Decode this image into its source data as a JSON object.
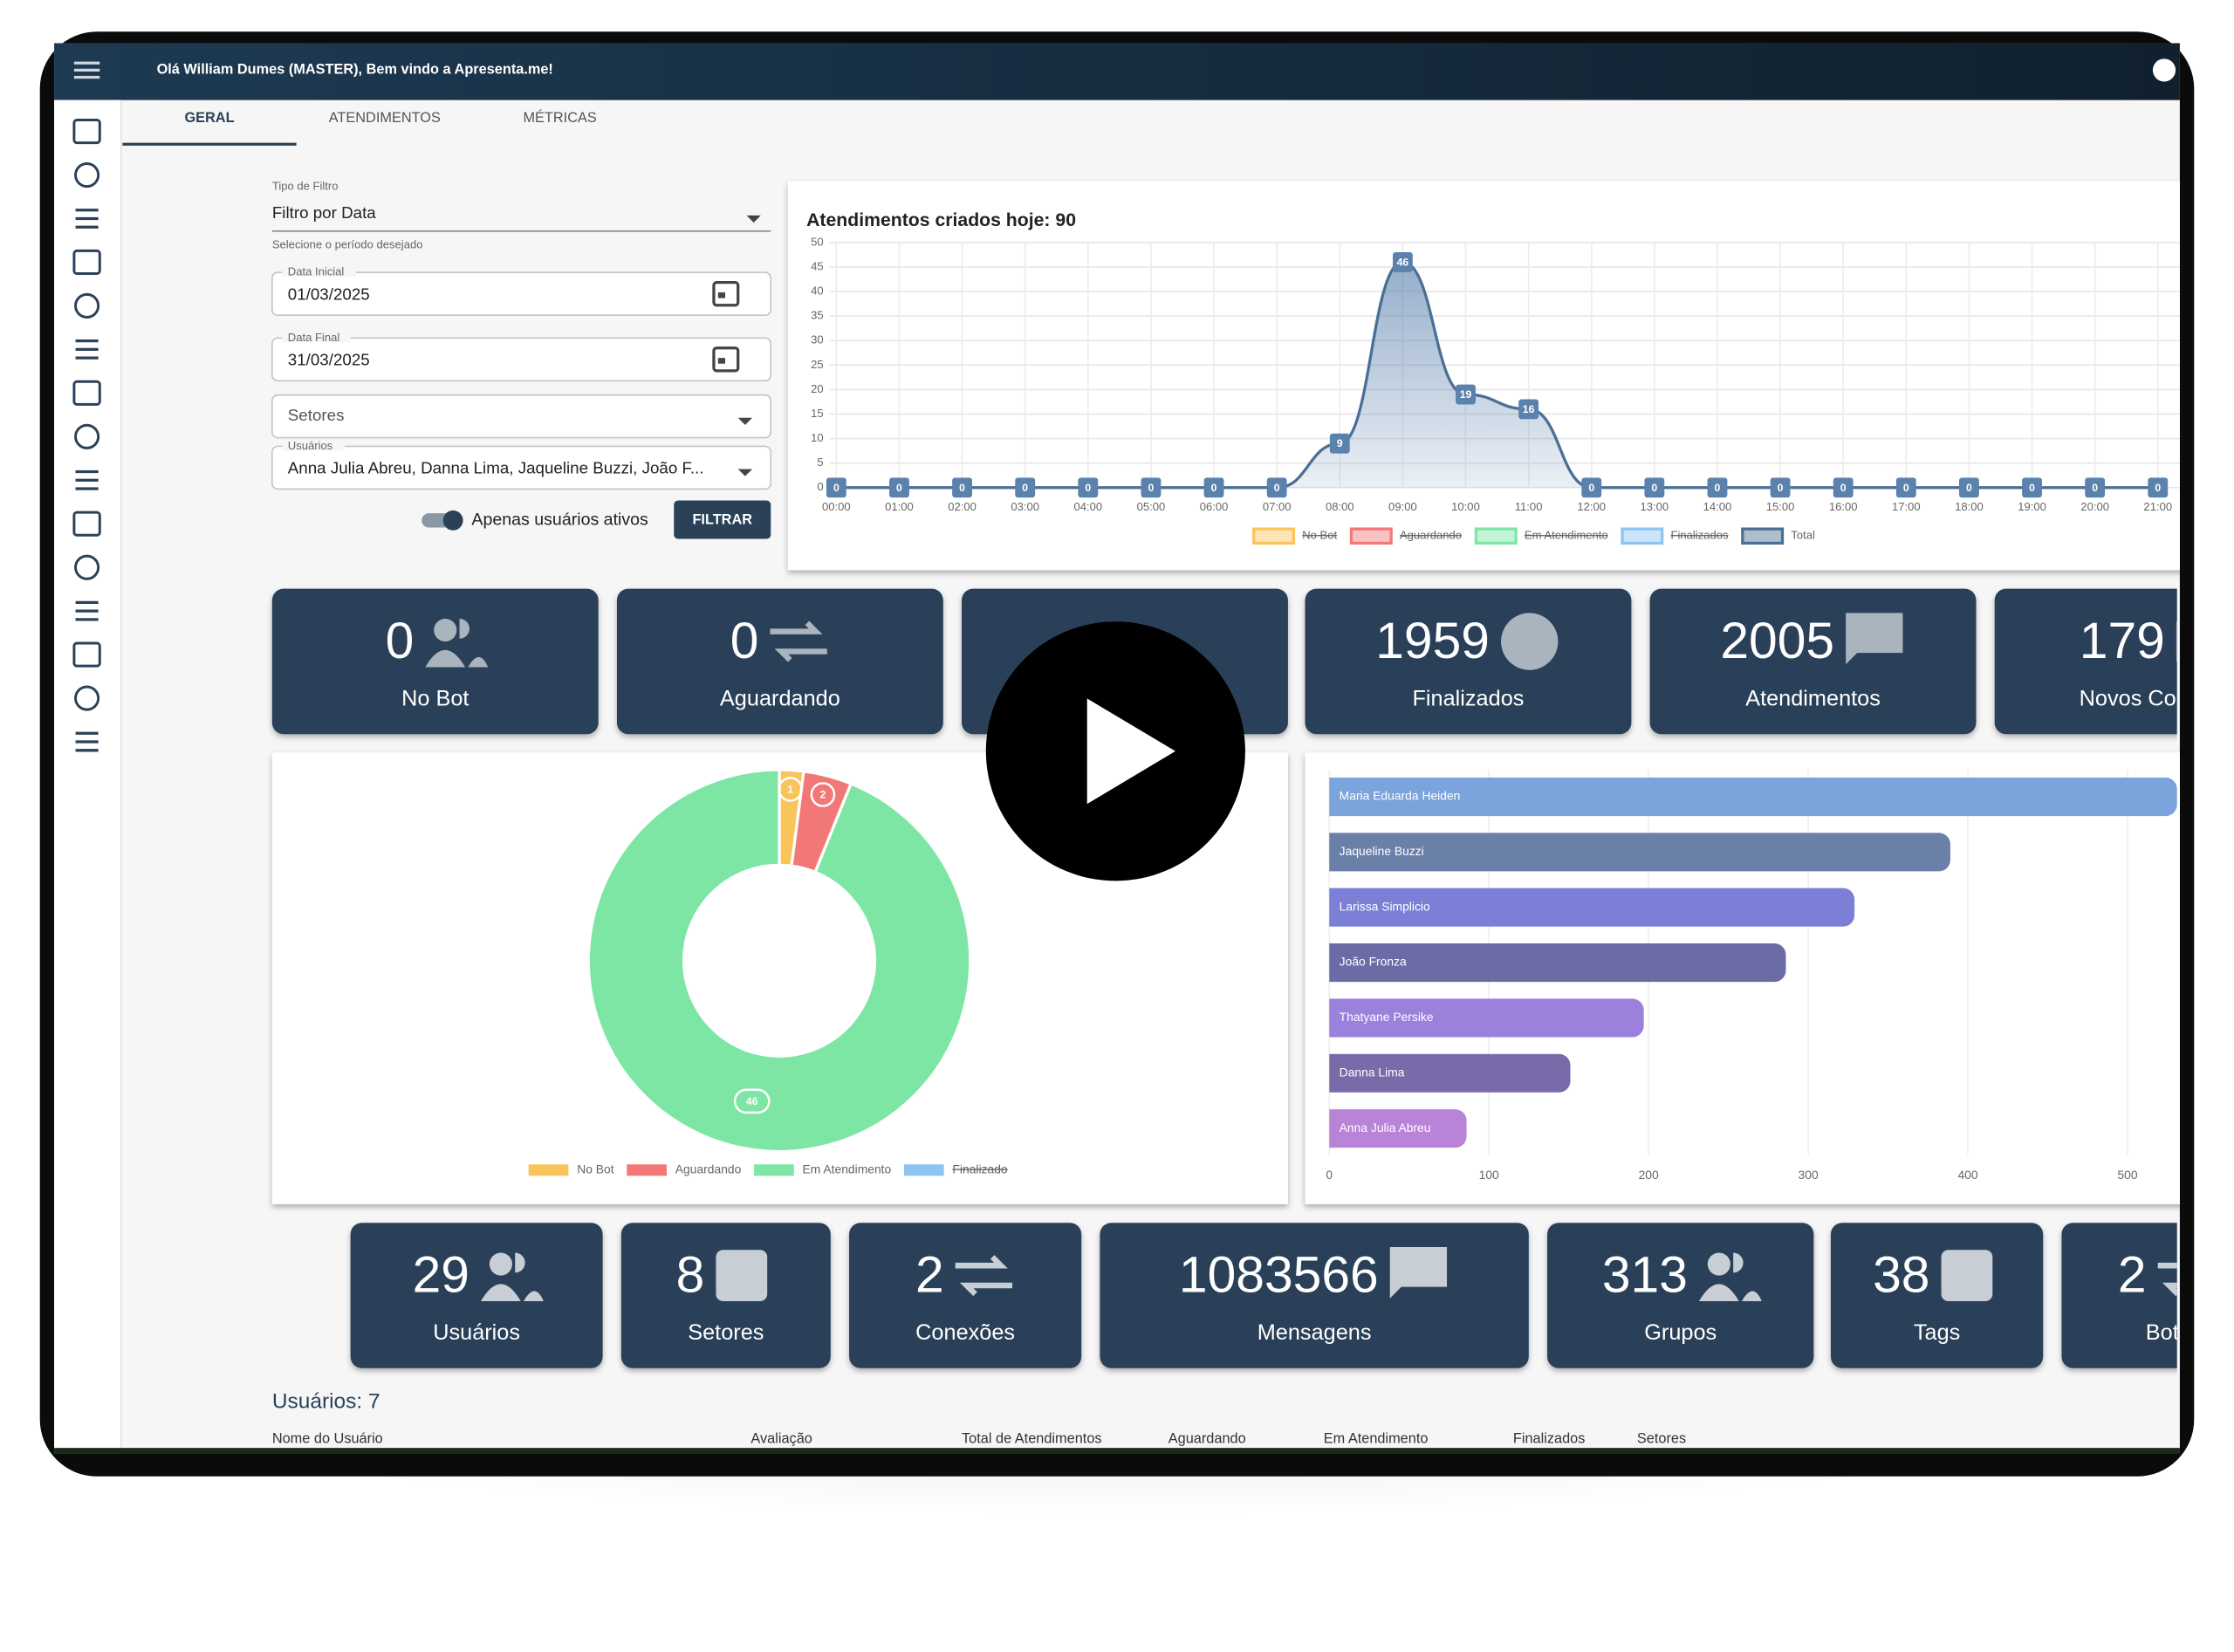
{
  "header": {
    "greeting": "Olá William Dumes (MASTER), Bem vindo a Apresenta.me!"
  },
  "tabs": [
    "GERAL",
    "ATENDIMENTOS",
    "MÉTRICAS"
  ],
  "filters": {
    "type_label": "Tipo de Filtro",
    "type_value": "Filtro por Data",
    "type_helper": "Selecione o período desejado",
    "start_label": "Data Inicial",
    "start_value": "01/03/2025",
    "end_label": "Data Final",
    "end_value": "31/03/2025",
    "sectors_placeholder": "Setores",
    "users_label": "Usuários",
    "users_value": "Anna Julia Abreu, Danna Lima, Jaqueline Buzzi, João F...",
    "active_toggle": "Apenas usuários ativos",
    "button": "FILTRAR"
  },
  "chart_data": [
    {
      "type": "line",
      "title": "Atendimentos criados hoje: 90",
      "categories": [
        "00:00",
        "01:00",
        "02:00",
        "03:00",
        "04:00",
        "05:00",
        "06:00",
        "07:00",
        "08:00",
        "09:00",
        "10:00",
        "11:00",
        "12:00",
        "13:00",
        "14:00",
        "15:00",
        "16:00",
        "17:00",
        "18:00",
        "19:00",
        "20:00",
        "21:00"
      ],
      "series": [
        {
          "name": "No Bot",
          "color": "#f9c45a",
          "hidden": true
        },
        {
          "name": "Aguardando",
          "color": "#f27878",
          "hidden": true
        },
        {
          "name": "Em Atendimento",
          "color": "#7de6a4",
          "hidden": true
        },
        {
          "name": "Finalizados",
          "color": "#8cc4f2",
          "hidden": true
        },
        {
          "name": "Total",
          "color": "#4a6f95",
          "values": [
            0,
            0,
            0,
            0,
            0,
            0,
            0,
            0,
            9,
            46,
            19,
            16,
            0,
            0,
            0,
            0,
            0,
            0,
            0,
            0,
            0,
            0
          ]
        }
      ],
      "ylim": [
        0,
        50
      ],
      "yticks": [
        0,
        5,
        10,
        15,
        20,
        25,
        30,
        35,
        40,
        45,
        50
      ],
      "grid": true
    },
    {
      "type": "pie",
      "hole": 0.5,
      "categories": [
        "No Bot",
        "Aguardando",
        "Em Atendimento",
        "Finalizado"
      ],
      "values": [
        1,
        2,
        46,
        null
      ],
      "colors": [
        "#f9c45a",
        "#f27878",
        "#7de6a4",
        "#8cc4f2"
      ],
      "hidden": [
        false,
        false,
        false,
        true
      ]
    },
    {
      "type": "bar",
      "orientation": "horizontal",
      "categories": [
        "Maria Eduarda Heiden",
        "Jaqueline Buzzi",
        "Larissa Simplicio",
        "João Fronza",
        "Thatyane Persike",
        "Danna Lima",
        "Anna Julia Abreu"
      ],
      "values": [
        531,
        389,
        329,
        286,
        197,
        151,
        86
      ],
      "colors": [
        "#7ba3dc",
        "#6a80a8",
        "#7b80d6",
        "#6b6ca6",
        "#9b80dc",
        "#7a6aaa",
        "#b983d8"
      ],
      "xlim": [
        0,
        531
      ],
      "xticks": [
        0,
        100,
        200,
        300,
        400,
        500
      ],
      "grid": true
    }
  ],
  "top_cards": [
    {
      "value": 0,
      "label": "No Bot"
    },
    {
      "value": 0,
      "label": "Aguardando"
    },
    {
      "value": 1959,
      "label": "Finalizados"
    },
    {
      "value": 2005,
      "label": "Atendimentos"
    },
    {
      "value": 179,
      "label": "Novos Contatos"
    }
  ],
  "bottom_cards": [
    {
      "value": 29,
      "label": "Usuários"
    },
    {
      "value": 8,
      "label": "Setores"
    },
    {
      "value": 2,
      "label": "Conexões"
    },
    {
      "value": 1083566,
      "label": "Mensagens"
    },
    {
      "value": 313,
      "label": "Grupos"
    },
    {
      "value": 38,
      "label": "Tags"
    },
    {
      "value": 2,
      "label": "Bots"
    }
  ],
  "table": {
    "title": "Usuários: 7",
    "columns": [
      "Nome do Usuário",
      "Avaliação",
      "Total de Atendimentos",
      "Aguardando",
      "Em Atendimento",
      "Finalizados",
      "Setores"
    ]
  }
}
